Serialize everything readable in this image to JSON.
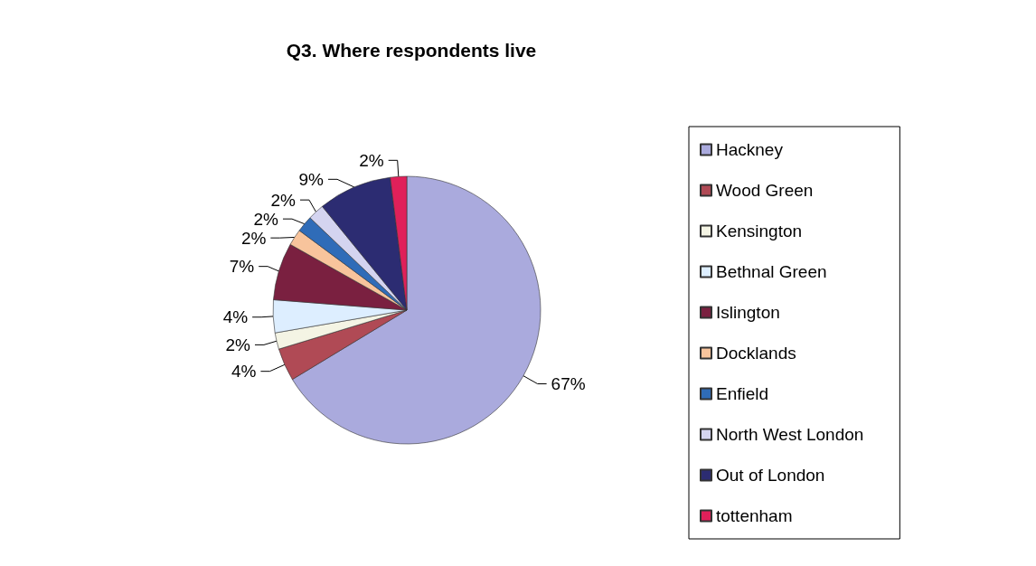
{
  "chart_data": {
    "type": "pie",
    "title": "Q3. Where respondents live",
    "categories": [
      "Hackney",
      "Wood Green",
      "Kensington",
      "Bethnal Green",
      "Islington",
      "Docklands",
      "Enfield",
      "North West London",
      "Out of London",
      "tottenham"
    ],
    "values": [
      67,
      4,
      2,
      4,
      7,
      2,
      2,
      2,
      9,
      2
    ],
    "colors": [
      "#aaaadd",
      "#b04a55",
      "#f4f4e4",
      "#ddeeff",
      "#7a2040",
      "#f8c49c",
      "#2f6cb8",
      "#d4d4f0",
      "#2c2c72",
      "#e0205a"
    ],
    "value_labels": [
      "67%",
      "4%",
      "2%",
      "4%",
      "7%",
      "2%",
      "2%",
      "2%",
      "9%",
      "2%"
    ],
    "legend": "right"
  }
}
